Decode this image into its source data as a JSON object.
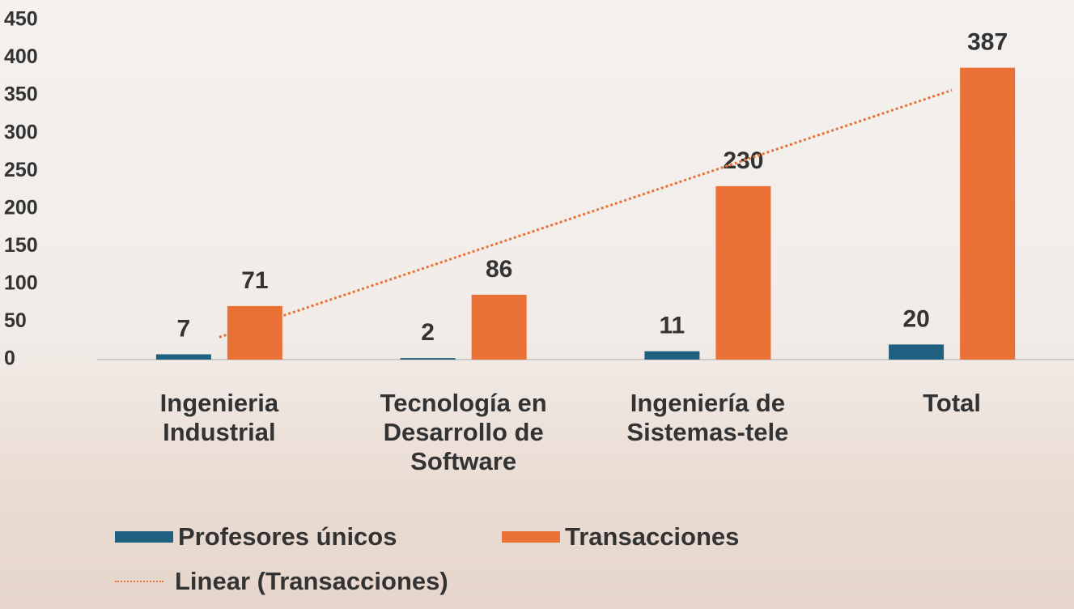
{
  "chart_data": {
    "type": "bar",
    "categories": [
      "Ingenieria Industrial",
      "Tecnología en Desarrollo de Software",
      "Ingeniería de Sistemas-tele",
      "Total"
    ],
    "series": [
      {
        "name": "Profesores únicos",
        "color": "#1f5f7f",
        "values": [
          7,
          2,
          11,
          20
        ]
      },
      {
        "name": "Transacciones",
        "color": "#ea7136",
        "values": [
          71,
          86,
          230,
          387
        ]
      }
    ],
    "trendline": {
      "name": "Linear (Transacciones)",
      "type": "linear",
      "series": 1,
      "color": "#ea7136"
    },
    "ylim": [
      0,
      450
    ],
    "yticks": [
      0,
      50,
      100,
      150,
      200,
      250,
      300,
      350,
      400,
      450
    ],
    "grid": false
  }
}
